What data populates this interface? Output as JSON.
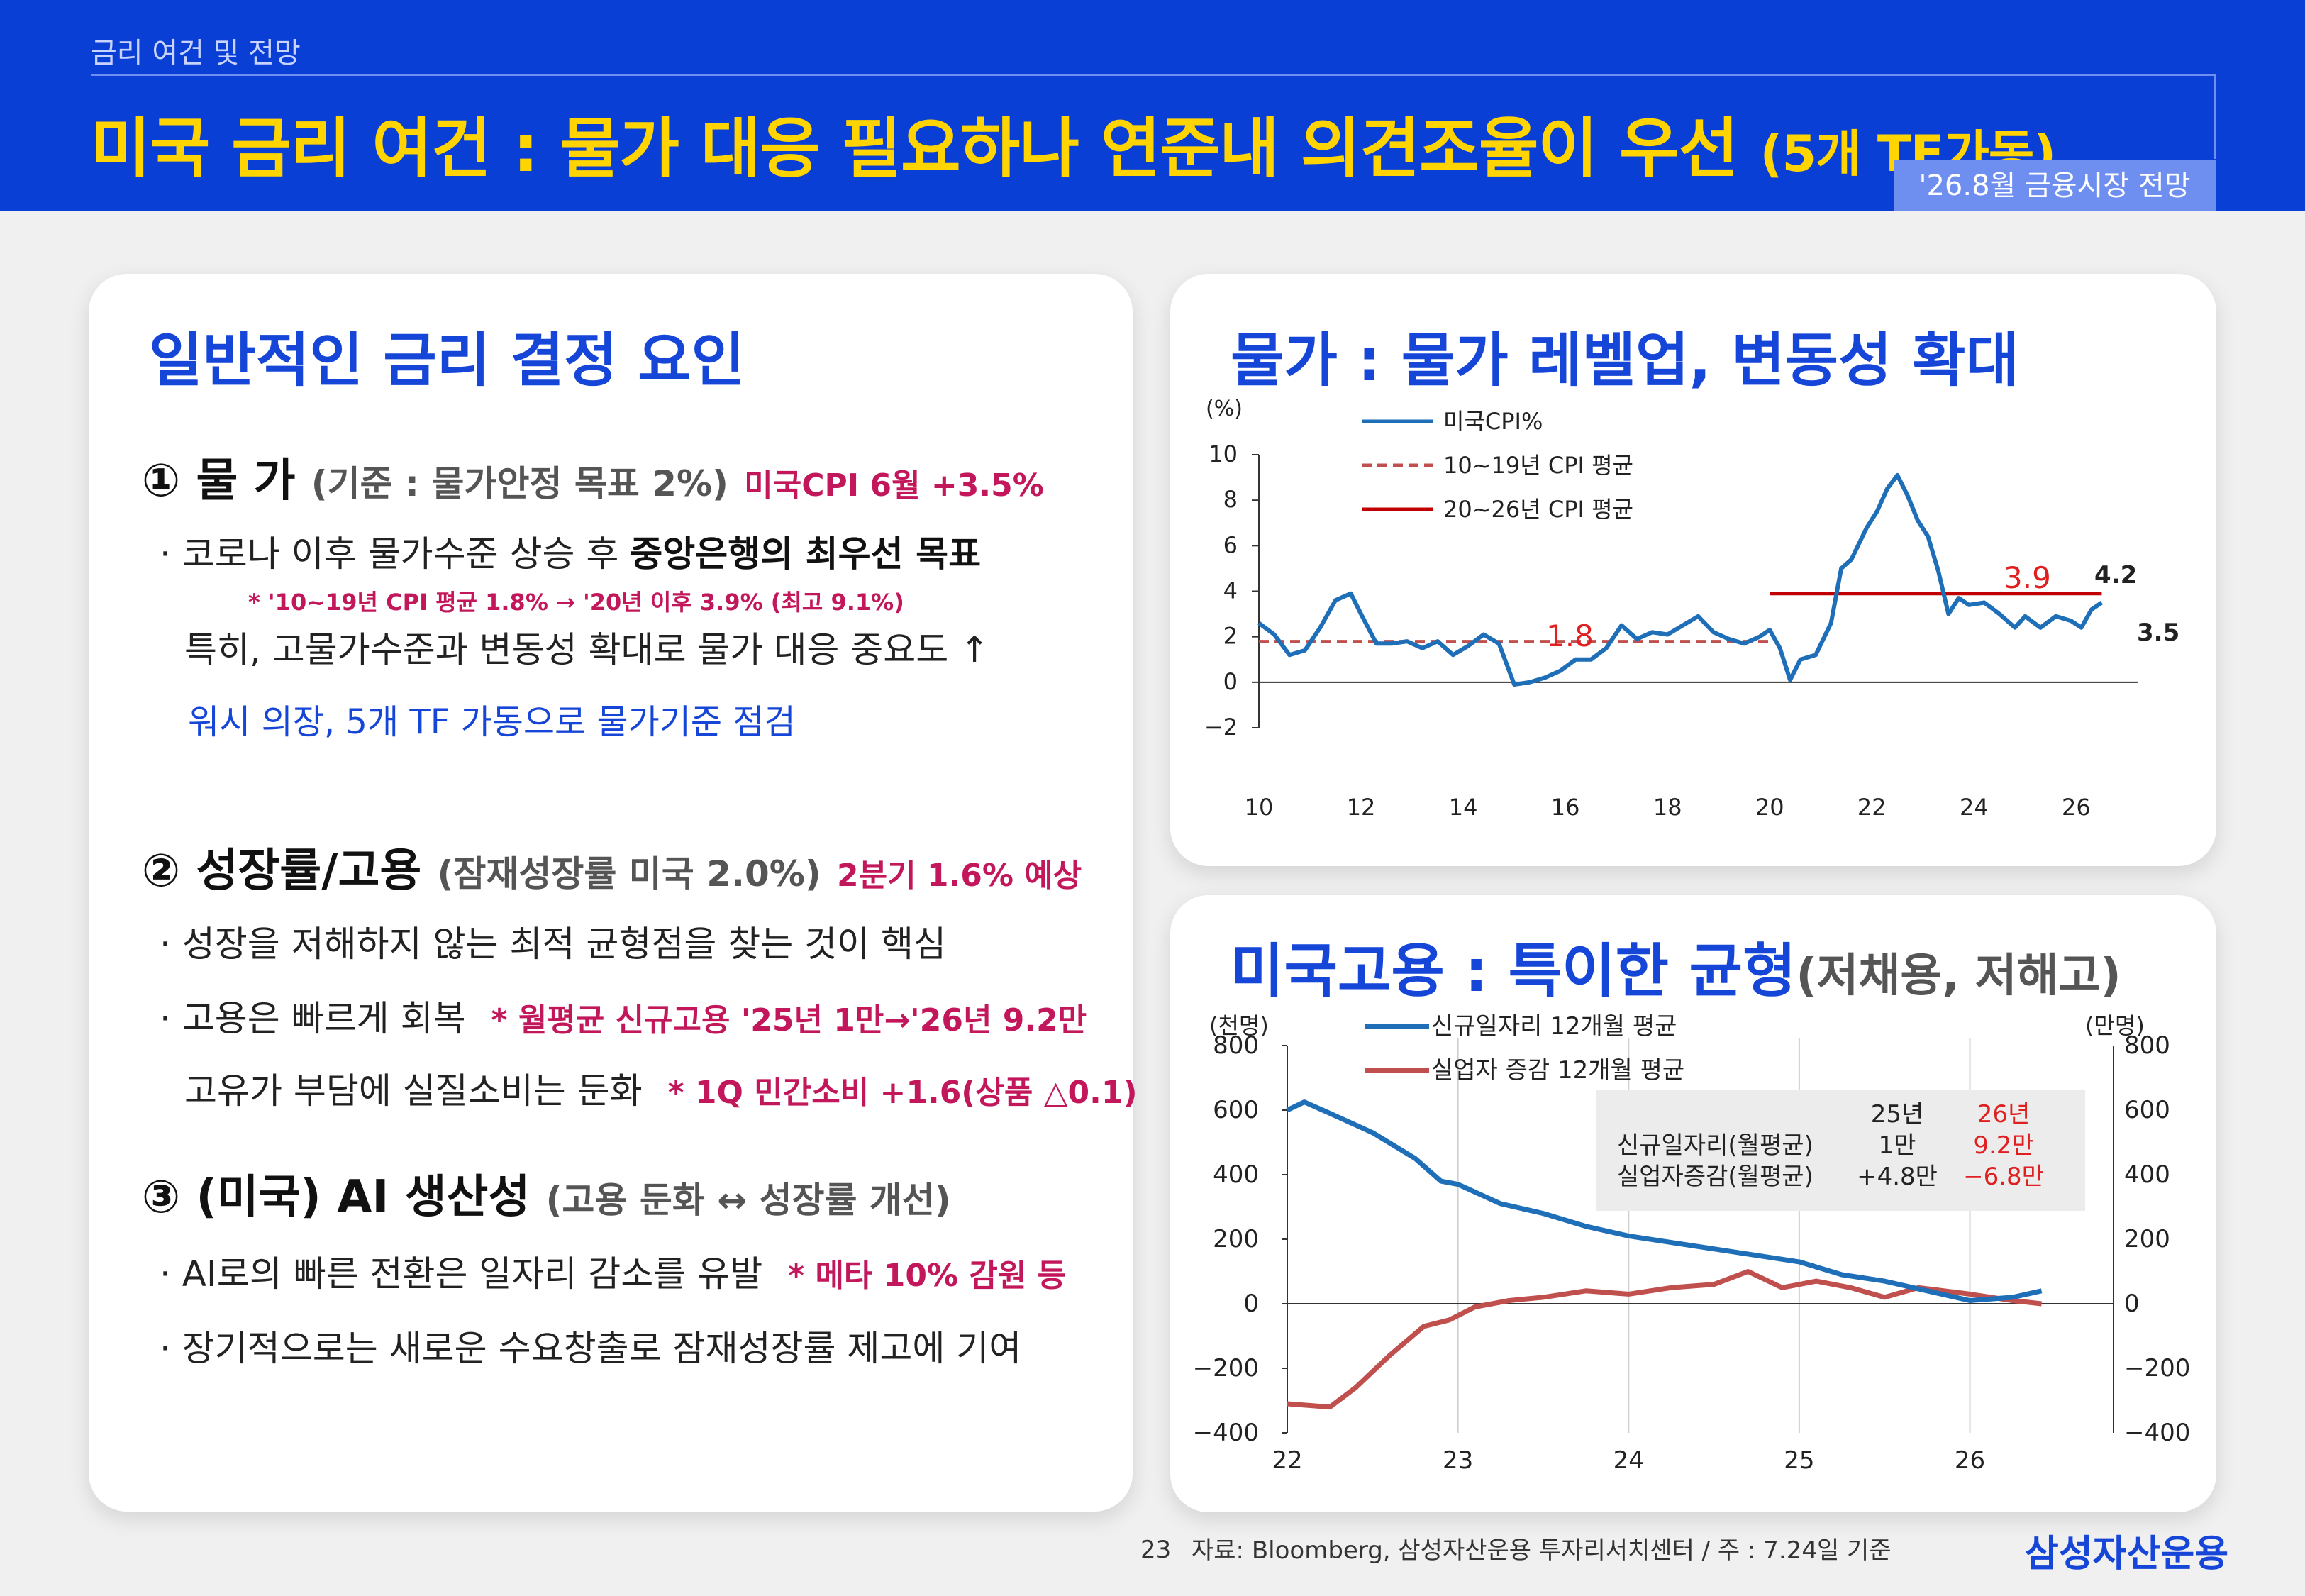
{
  "header": {
    "section": "금리 여건 및 전망",
    "title": "미국 금리 여건 : 물가 대응 필요하나 연준내 의견조율이 우선",
    "title_suffix": "(5개 TF가동)",
    "badge": "'26.8월 금융시장 전망"
  },
  "left_panel": {
    "title": "일반적인 금리 결정 요인",
    "factor1": {
      "label": "① 물 가",
      "sub": "(기준 : 물가안정 목표 2%)",
      "note": "미국CPI 6월  +3.5%",
      "bullet_text": "· 코로나 이후 물가수준 상승 후 ",
      "bullet_bold": "중앙은행의 최우선 목표",
      "small_note": "* '10~19년 CPI 평균 1.8% → '20년 이후 3.9% (최고 9.1%)",
      "line2": "특히, 고물가수준과 변동성 확대로 물가 대응 중요도 ↑",
      "blue_line": "워시 의장, 5개 TF 가동으로 물가기준 점검"
    },
    "factor2": {
      "label": "② 성장률/고용",
      "sub": "(잠재성장률 미국 2.0%)",
      "note": "2분기 1.6% 예상",
      "bullet1": "· 성장을 저해하지 않는 최적 균형점을 찾는 것이 핵심",
      "bullet2_text": "· 고용은 빠르게 회복",
      "bullet2_note": "* 월평균 신규고용 '25년 1만→'26년 9.2만",
      "line3_text": "고유가 부담에 실질소비는 둔화",
      "line3_note": "* 1Q 민간소비 +1.6(상품 △0.1)"
    },
    "factor3": {
      "label": "③ (미국) AI 생산성",
      "sub": "(고용 둔화 ↔ 성장률 개선)",
      "bullet1_text": "· AI로의 빠른 전환은 일자리 감소를 유발",
      "bullet1_note": "* 메타 10% 감원 등",
      "bullet2": "· 장기적으로는 새로운 수요창출로 잠재성장률 제고에 기여"
    }
  },
  "cpi_panel": {
    "title": "물가 : 물가 레벨업, 변동성 확대"
  },
  "emp_panel": {
    "title": "미국고용 : 특이한 균형",
    "title_sub": "(저채용, 저해고)"
  },
  "footer": {
    "page": "23",
    "source": "자료: Bloomberg, 삼성자산운용 투자리서치센터 / 주 : 7.24일 기준",
    "company": "삼성자산운용"
  },
  "colors": {
    "header_bg": "#0a3fd6",
    "title_yellow": "#ffd400",
    "accent_blue": "#1646d8",
    "note_magenta": "#c2185b",
    "cpi_line": "#1f6fb8",
    "avg_red": "#c00000",
    "jobs_blue": "#1f6fb8",
    "unemp_red": "#c0504d"
  },
  "chart_data": [
    {
      "type": "line",
      "ylabel": "(%)",
      "ylim": [
        -2,
        10
      ],
      "yticks": [
        "10",
        "8",
        "6",
        "4",
        "2",
        "0",
        "−2"
      ],
      "xticks": [
        "10",
        "12",
        "14",
        "16",
        "18",
        "20",
        "22",
        "24",
        "26"
      ],
      "xlim": [
        2010,
        2026.8
      ],
      "legend": [
        "미국CPI%",
        "10~19년 CPI 평균",
        "20~26년 CPI 평균"
      ],
      "series": [
        {
          "name": "미국CPI%",
          "x": [
            2010.0,
            2010.3,
            2010.6,
            2010.9,
            2011.2,
            2011.5,
            2011.8,
            2012.0,
            2012.3,
            2012.6,
            2012.9,
            2013.2,
            2013.5,
            2013.8,
            2014.1,
            2014.4,
            2014.7,
            2015.0,
            2015.3,
            2015.6,
            2015.9,
            2016.2,
            2016.5,
            2016.8,
            2017.1,
            2017.4,
            2017.7,
            2018.0,
            2018.3,
            2018.6,
            2018.9,
            2019.2,
            2019.5,
            2019.8,
            2020.0,
            2020.2,
            2020.4,
            2020.6,
            2020.9,
            2021.2,
            2021.4,
            2021.6,
            2021.9,
            2022.1,
            2022.3,
            2022.5,
            2022.7,
            2022.9,
            2023.1,
            2023.3,
            2023.5,
            2023.7,
            2023.9,
            2024.2,
            2024.5,
            2024.8,
            2025.0,
            2025.3,
            2025.6,
            2025.9,
            2026.1,
            2026.3,
            2026.5
          ],
          "values": [
            2.6,
            2.1,
            1.2,
            1.4,
            2.4,
            3.6,
            3.9,
            3.0,
            1.7,
            1.7,
            1.8,
            1.5,
            1.8,
            1.2,
            1.6,
            2.1,
            1.7,
            -0.1,
            0.0,
            0.2,
            0.5,
            1.0,
            1.0,
            1.5,
            2.5,
            1.9,
            2.2,
            2.1,
            2.5,
            2.9,
            2.2,
            1.9,
            1.7,
            2.0,
            2.3,
            1.5,
            0.1,
            1.0,
            1.2,
            2.6,
            5.0,
            5.4,
            6.8,
            7.5,
            8.5,
            9.1,
            8.2,
            7.1,
            6.4,
            4.9,
            3.0,
            3.7,
            3.4,
            3.5,
            3.0,
            2.4,
            2.9,
            2.4,
            2.9,
            2.7,
            2.4,
            3.2,
            3.5
          ]
        },
        {
          "name": "10~19년 CPI 평균",
          "x": [
            2010,
            2020
          ],
          "values": [
            1.8,
            1.8
          ]
        },
        {
          "name": "20~26년 CPI 평균",
          "x": [
            2020,
            2026.5
          ],
          "values": [
            3.9,
            3.9
          ]
        }
      ],
      "annotations": [
        "1.8",
        "3.9",
        "4.2",
        "3.5"
      ]
    },
    {
      "type": "line",
      "ylabel_left": "(천명)",
      "ylabel_right": "(만명)",
      "ylim": [
        -400,
        800
      ],
      "yticks": [
        "800",
        "600",
        "400",
        "200",
        "0",
        "−200",
        "−400"
      ],
      "xticks": [
        "22",
        "23",
        "24",
        "25",
        "26"
      ],
      "xlim": [
        2022,
        2026.8
      ],
      "legend": [
        "신규일자리 12개월 평균",
        "실업자 증감 12개월 평균"
      ],
      "series": [
        {
          "name": "신규일자리 12개월 평균",
          "x": [
            2022.0,
            2022.1,
            2022.25,
            2022.5,
            2022.75,
            2022.9,
            2023.0,
            2023.25,
            2023.5,
            2023.75,
            2024.0,
            2024.25,
            2024.5,
            2024.75,
            2025.0,
            2025.25,
            2025.5,
            2025.75,
            2026.0,
            2026.25,
            2026.42
          ],
          "values": [
            600,
            625,
            590,
            530,
            450,
            380,
            370,
            310,
            280,
            240,
            210,
            190,
            170,
            150,
            130,
            90,
            70,
            40,
            10,
            20,
            40
          ]
        },
        {
          "name": "실업자 증감 12개월 평균",
          "x": [
            2022.0,
            2022.25,
            2022.4,
            2022.6,
            2022.8,
            2022.95,
            2023.1,
            2023.3,
            2023.5,
            2023.75,
            2024.0,
            2024.25,
            2024.5,
            2024.7,
            2024.9,
            2025.1,
            2025.3,
            2025.5,
            2025.7,
            2026.0,
            2026.25,
            2026.42
          ],
          "values": [
            -310,
            -320,
            -260,
            -160,
            -70,
            -50,
            -10,
            10,
            20,
            40,
            30,
            50,
            60,
            100,
            50,
            70,
            50,
            20,
            50,
            30,
            10,
            0
          ]
        }
      ],
      "table": {
        "headers": [
          "",
          "25년",
          "26년"
        ],
        "rows": [
          [
            "신규일자리(월평균)",
            "1만",
            "9.2만"
          ],
          [
            "실업자증감(월평균)",
            "+4.8만",
            "−6.8만"
          ]
        ]
      }
    }
  ]
}
